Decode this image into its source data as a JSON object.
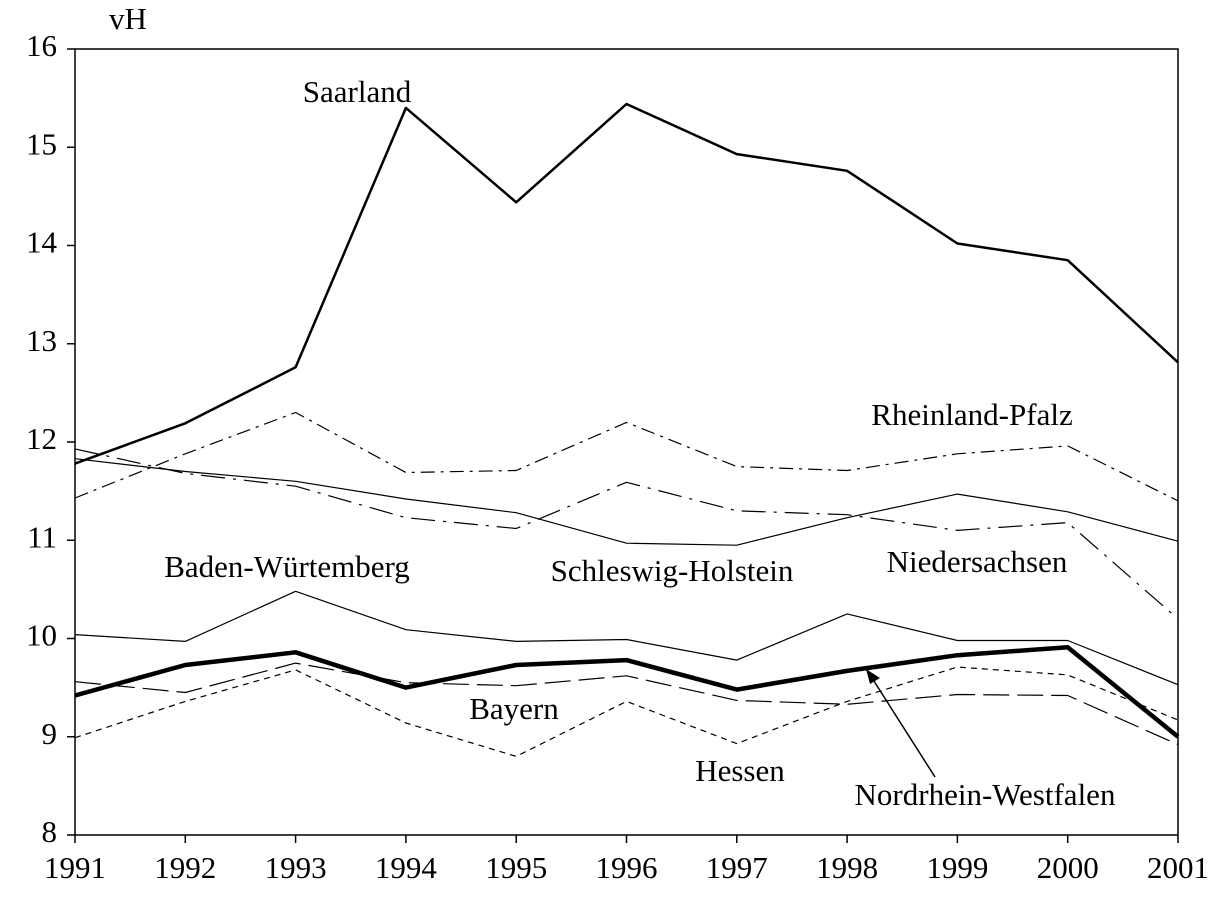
{
  "chart_data": {
    "type": "line",
    "ylabel": "vH",
    "x": [
      1991,
      1992,
      1993,
      1994,
      1995,
      1996,
      1997,
      1998,
      1999,
      2000,
      2001
    ],
    "xlim": [
      1991,
      2001
    ],
    "xticks": [
      1991,
      1992,
      1993,
      1994,
      1995,
      1996,
      1997,
      1998,
      1999,
      2000,
      2001
    ],
    "ylim": [
      8,
      16
    ],
    "yticks": [
      8,
      9,
      10,
      11,
      12,
      13,
      14,
      15,
      16
    ],
    "grid": false,
    "series": [
      {
        "name": "Saarland",
        "color": "#000000",
        "dash": "solid",
        "linewidth": 2.5,
        "values": [
          11.78,
          12.19,
          12.76,
          15.4,
          14.44,
          15.44,
          14.93,
          14.76,
          14.02,
          13.85,
          12.81
        ]
      },
      {
        "name": "Rheinland-Pfalz",
        "color": "#000000",
        "dash": "dashdot",
        "linewidth": 1.2,
        "values": [
          11.43,
          11.88,
          12.3,
          11.69,
          11.71,
          12.2,
          11.75,
          11.71,
          11.88,
          11.96,
          11.4
        ]
      },
      {
        "name": "Baden-Würtemberg",
        "color": "#000000",
        "dash": "solid",
        "linewidth": 1.2,
        "values": [
          10.04,
          9.97,
          10.48,
          10.09,
          9.97,
          9.99,
          9.78,
          10.25,
          9.98,
          9.98,
          9.53
        ]
      },
      {
        "name": "Schleswig-Holstein",
        "color": "#000000",
        "dash": "solid",
        "linewidth": 1.2,
        "values": [
          11.83,
          11.7,
          11.6,
          11.42,
          11.28,
          10.97,
          10.95,
          11.23,
          11.47,
          11.29,
          10.99
        ]
      },
      {
        "name": "Niedersachsen",
        "color": "#000000",
        "dash": "longdashdot",
        "linewidth": 1.2,
        "values": [
          11.93,
          11.68,
          11.55,
          11.23,
          11.12,
          11.59,
          11.3,
          11.26,
          11.1,
          11.18,
          10.2
        ]
      },
      {
        "name": "Bayern",
        "color": "#000000",
        "dash": "longdash",
        "linewidth": 1.2,
        "values": [
          9.56,
          9.45,
          9.75,
          9.55,
          9.52,
          9.62,
          9.37,
          9.33,
          9.43,
          9.42,
          8.92
        ]
      },
      {
        "name": "Hessen",
        "color": "#000000",
        "dash": "shortdash",
        "linewidth": 1.2,
        "values": [
          8.99,
          9.36,
          9.68,
          9.14,
          8.8,
          9.36,
          8.93,
          9.36,
          9.71,
          9.63,
          9.17
        ]
      },
      {
        "name": "Nordrhein-Westfalen",
        "color": "#000000",
        "dash": "solid",
        "linewidth": 4.5,
        "values": [
          9.42,
          9.73,
          9.86,
          9.5,
          9.73,
          9.78,
          9.48,
          9.67,
          9.83,
          9.91,
          9.0
        ]
      }
    ]
  }
}
